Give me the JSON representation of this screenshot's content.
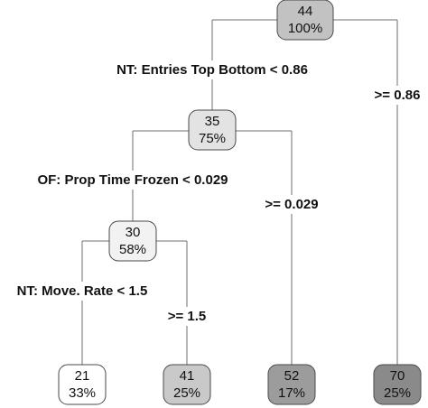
{
  "tree": {
    "nodes": [
      {
        "id": "root",
        "value": "44",
        "percent": "100%",
        "fill": "#c2c2c2"
      },
      {
        "id": "n2",
        "value": "35",
        "percent": "75%",
        "fill": "#e3e3e3"
      },
      {
        "id": "n3",
        "value": "30",
        "percent": "58%",
        "fill": "#f2f2f2"
      },
      {
        "id": "leaf1",
        "value": "21",
        "percent": "33%",
        "fill": "#ffffff"
      },
      {
        "id": "leaf2",
        "value": "41",
        "percent": "25%",
        "fill": "#c9c9c9"
      },
      {
        "id": "leaf3",
        "value": "52",
        "percent": "17%",
        "fill": "#9c9c9c"
      },
      {
        "id": "leaf4",
        "value": "70",
        "percent": "25%",
        "fill": "#8a8a8a"
      }
    ],
    "splits": [
      {
        "id": "s1",
        "label": "NT: Entries Top Bottom < 0.86"
      },
      {
        "id": "s1r",
        "label": ">= 0.86"
      },
      {
        "id": "s2",
        "label": "OF: Prop Time Frozen < 0.029"
      },
      {
        "id": "s2r",
        "label": ">= 0.029"
      },
      {
        "id": "s3",
        "label": "NT: Move. Rate < 1.5"
      },
      {
        "id": "s3r",
        "label": ">= 1.5"
      }
    ]
  }
}
